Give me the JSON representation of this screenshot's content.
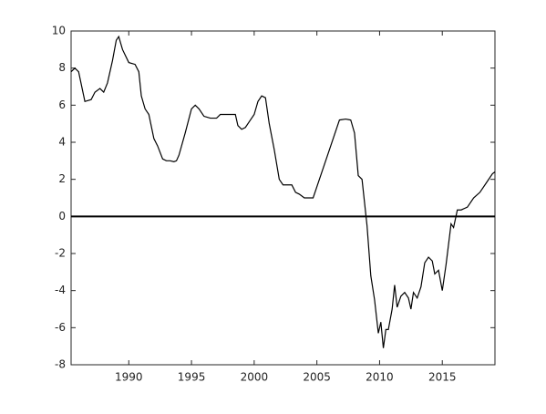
{
  "chart_data": {
    "type": "line",
    "x": [
      1985.4,
      1985.7,
      1986.0,
      1986.5,
      1987.0,
      1987.3,
      1987.7,
      1988.0,
      1988.3,
      1988.7,
      1989.0,
      1989.2,
      1989.5,
      1990.0,
      1990.5,
      1990.8,
      1991.0,
      1991.3,
      1991.6,
      1992.0,
      1992.3,
      1992.7,
      1993.0,
      1993.3,
      1993.6,
      1993.8,
      1994.0,
      1994.5,
      1995.0,
      1995.3,
      1995.6,
      1996.0,
      1996.5,
      1997.0,
      1997.3,
      1997.7,
      1998.0,
      1998.5,
      1998.7,
      1999.0,
      1999.3,
      1999.7,
      2000.0,
      2000.3,
      2000.6,
      2000.9,
      2001.2,
      2001.6,
      2002.0,
      2002.3,
      2002.7,
      2003.0,
      2003.3,
      2003.6,
      2004.0,
      2004.5,
      2004.7,
      2005.0,
      2006.0,
      2006.8,
      2007.3,
      2007.7,
      2008.0,
      2008.3,
      2008.6,
      2009.0,
      2009.3,
      2009.6,
      2009.9,
      2010.1,
      2010.3,
      2010.5,
      2010.7,
      2011.0,
      2011.2,
      2011.4,
      2011.7,
      2012.0,
      2012.3,
      2012.5,
      2012.7,
      2013.0,
      2013.3,
      2013.6,
      2013.9,
      2014.2,
      2014.4,
      2014.7,
      2015.0,
      2015.3,
      2015.7,
      2015.9,
      2016.2,
      2016.5,
      2017.0,
      2017.5,
      2018.0,
      2018.5,
      2019.0,
      2019.2
    ],
    "series": [
      {
        "color": "#000000",
        "values": [
          7.8,
          8.0,
          7.8,
          6.2,
          6.3,
          6.7,
          6.9,
          6.7,
          7.2,
          8.4,
          9.5,
          9.7,
          9.0,
          8.3,
          8.2,
          7.8,
          6.5,
          5.8,
          5.5,
          4.2,
          3.8,
          3.1,
          3.0,
          3.0,
          2.95,
          3.0,
          3.3,
          4.5,
          5.8,
          6.0,
          5.8,
          5.4,
          5.3,
          5.3,
          5.5,
          5.5,
          5.5,
          5.5,
          4.9,
          4.7,
          4.8,
          5.2,
          5.5,
          6.2,
          6.5,
          6.4,
          5.0,
          3.6,
          2.0,
          1.7,
          1.7,
          1.7,
          1.3,
          1.2,
          1.0,
          1.0,
          1.0,
          1.6,
          3.6,
          5.2,
          5.25,
          5.2,
          4.5,
          2.2,
          2.0,
          -0.5,
          -3.2,
          -4.5,
          -6.3,
          -5.7,
          -7.1,
          -6.1,
          -6.1,
          -5.0,
          -3.7,
          -4.9,
          -4.3,
          -4.1,
          -4.4,
          -5.0,
          -4.1,
          -4.4,
          -3.8,
          -2.5,
          -2.2,
          -2.4,
          -3.1,
          -2.9,
          -4.0,
          -2.6,
          -0.4,
          -0.6,
          0.35,
          0.35,
          0.5,
          1.0,
          1.3,
          1.8,
          2.3,
          2.4
        ]
      }
    ],
    "xlim": [
      1985.4,
      2019.2
    ],
    "xticks": [
      1990,
      1995,
      2000,
      2005,
      2010,
      2015
    ],
    "ylim": [
      -8,
      10
    ],
    "yticks": [
      -8,
      -6,
      -4,
      -2,
      0,
      2,
      4,
      6,
      8,
      10
    ],
    "hline": 0
  }
}
